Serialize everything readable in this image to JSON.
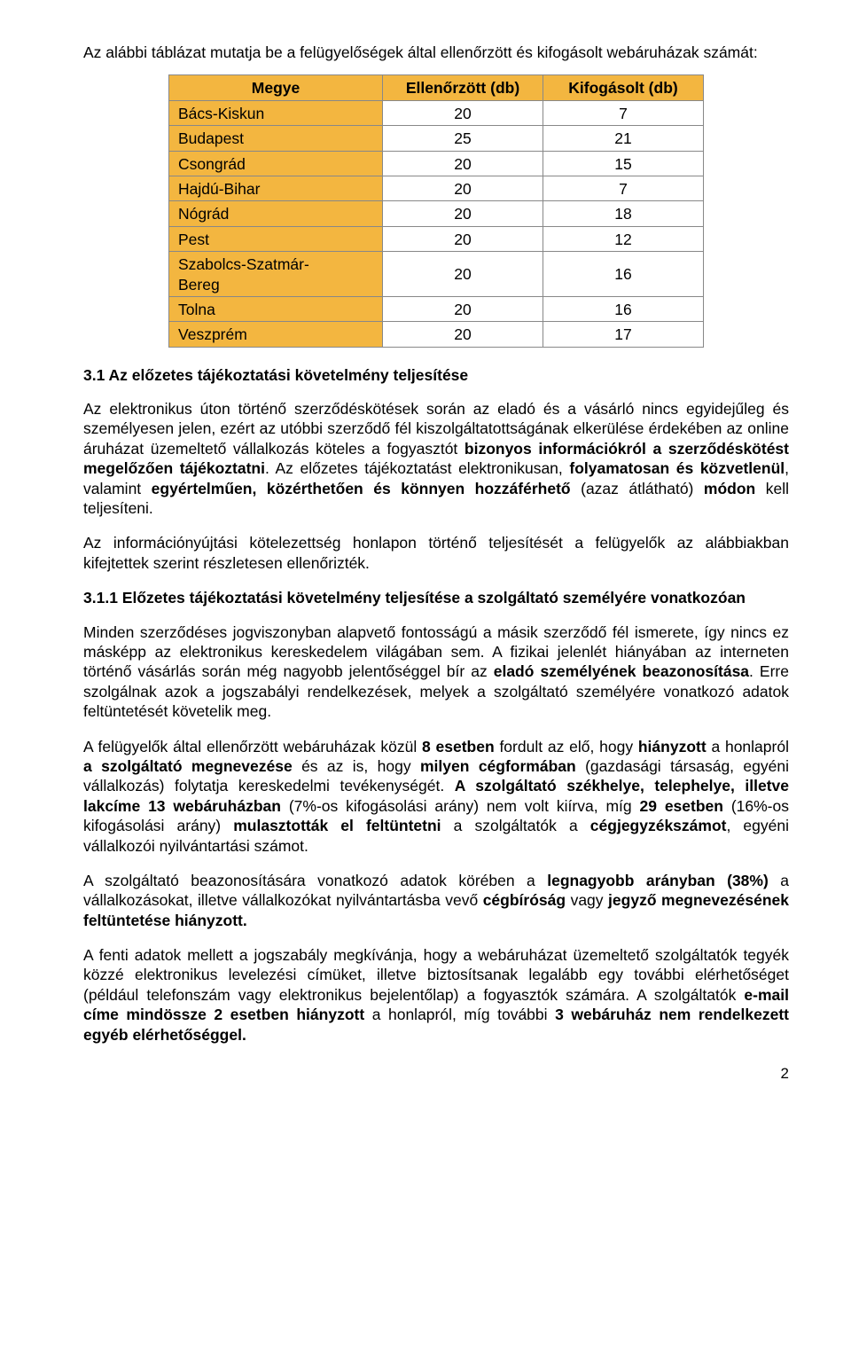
{
  "intro": "Az alábbi táblázat mutatja be a felügyelőségek által ellenőrzött és kifogásolt webáruházak számát:",
  "table": {
    "headers": [
      "Megye",
      "Ellenőrzött (db)",
      "Kifogásolt (db)"
    ],
    "rows": [
      [
        "Bács-Kiskun",
        "20",
        "7"
      ],
      [
        "Budapest",
        "25",
        "21"
      ],
      [
        "Csongrád",
        "20",
        "15"
      ],
      [
        "Hajdú-Bihar",
        "20",
        "7"
      ],
      [
        "Nógrád",
        "20",
        "18"
      ],
      [
        "Pest",
        "20",
        "12"
      ],
      [
        "Szabolcs-Szatmár-Bereg",
        "20",
        "16"
      ],
      [
        "Tolna",
        "20",
        "16"
      ],
      [
        "Veszprém",
        "20",
        "17"
      ]
    ]
  },
  "sec31": "3.1 Az előzetes tájékoztatási követelmény teljesítése",
  "p1a": "Az elektronikus úton történő szerződéskötések során az eladó és a vásárló nincs egyidejűleg és személyesen jelen, ezért az utóbbi szerződő fél kiszolgáltatottságának elkerülése érdekében az online áruházat üzemeltető vállalkozás köteles a fogyasztót ",
  "p1b": "bizonyos információkról a szerződéskötést megelőzően tájékoztatni",
  "p1c": ". Az előzetes tájékoztatást elektronikusan, ",
  "p1d": "folyamatosan és közvetlenül",
  "p1e": ", valamint ",
  "p1f": "egyértelműen, közérthetően és könnyen hozzáférhető",
  "p1g": " (azaz átlátható) ",
  "p1h": "módon",
  "p1i": " kell teljesíteni.",
  "p2": "Az információnyújtási kötelezettség honlapon történő teljesítését a felügyelők az alábbiakban kifejtettek szerint részletesen ellenőrizték.",
  "sec311": "3.1.1 Előzetes tájékoztatási követelmény teljesítése a szolgáltató személyére vonatkozóan",
  "p3a": "Minden szerződéses jogviszonyban alapvető fontosságú a másik szerződő fél ismerete, így nincs ez másképp az elektronikus kereskedelem világában sem. A fizikai jelenlét hiányában az interneten történő vásárlás során még nagyobb jelentőséggel bír az ",
  "p3b": "eladó személyének beazonosítása",
  "p3c": ". Erre szolgálnak azok a jogszabályi rendelkezések, melyek a szolgáltató személyére vonatkozó adatok feltüntetését követelik meg.",
  "p4a": "A felügyelők által ellenőrzött webáruházak közül ",
  "p4b": "8 esetben",
  "p4c": " fordult az elő, hogy ",
  "p4d": "hiányzott",
  "p4e": " a honlapról ",
  "p4f": "a szolgáltató megnevezése",
  "p4g": " és az is, hogy ",
  "p4h": "milyen cégformában",
  "p4i": " (gazdasági társaság, egyéni vállalkozás) folytatja kereskedelmi tevékenységét. ",
  "p4j": "A szolgáltató székhelye, telephelye, illetve lakcíme 13 webáruházban",
  "p4k": " (7%-os kifogásolási arány) nem volt kiírva, míg ",
  "p4l": "29 esetben",
  "p4m": " (16%-os kifogásolási arány) ",
  "p4n": "mulasztották el feltüntetni",
  "p4o": " a szolgáltatók a ",
  "p4p": "cégjegyzékszámot",
  "p4q": ", egyéni vállalkozói nyilvántartási számot.",
  "p5a": "A szolgáltató beazonosítására vonatkozó adatok körében a ",
  "p5b": "legnagyobb arányban (38%)",
  "p5c": " a vállalkozásokat, illetve vállalkozókat nyilvántartásba vevő ",
  "p5d": "cégbíróság",
  "p5e": " vagy ",
  "p5f": "jegyző megnevezésének feltüntetése hiányzott.",
  "p6a": "A fenti adatok mellett a jogszabály megkívánja, hogy a webáruházat üzemeltető szolgáltatók tegyék közzé elektronikus levelezési címüket, illetve biztosítsanak legalább egy további elérhetőséget (például telefonszám vagy elektronikus bejelentőlap) a fogyasztók számára. A szolgáltatók ",
  "p6b": "e-mail címe mindössze 2 esetben hiányzott",
  "p6c": " a honlapról, míg további ",
  "p6d": "3 webáruház nem rendelkezett egyéb elérhetőséggel.",
  "pagenum": "2"
}
